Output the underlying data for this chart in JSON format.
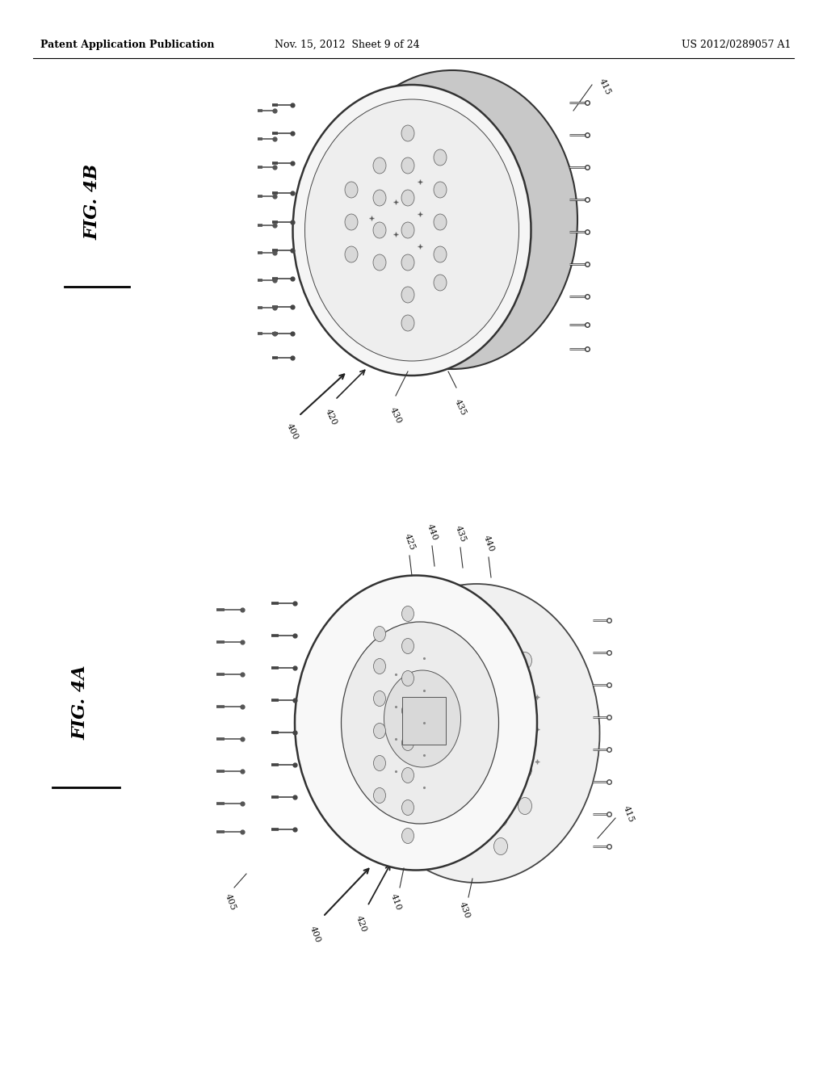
{
  "background_color": "#ffffff",
  "header_left": "Patent Application Publication",
  "header_center": "Nov. 15, 2012  Sheet 9 of 24",
  "header_right": "US 2012/0289057 A1",
  "fig4b_label": "FIG. 4B",
  "fig4a_label": "FIG. 4A"
}
